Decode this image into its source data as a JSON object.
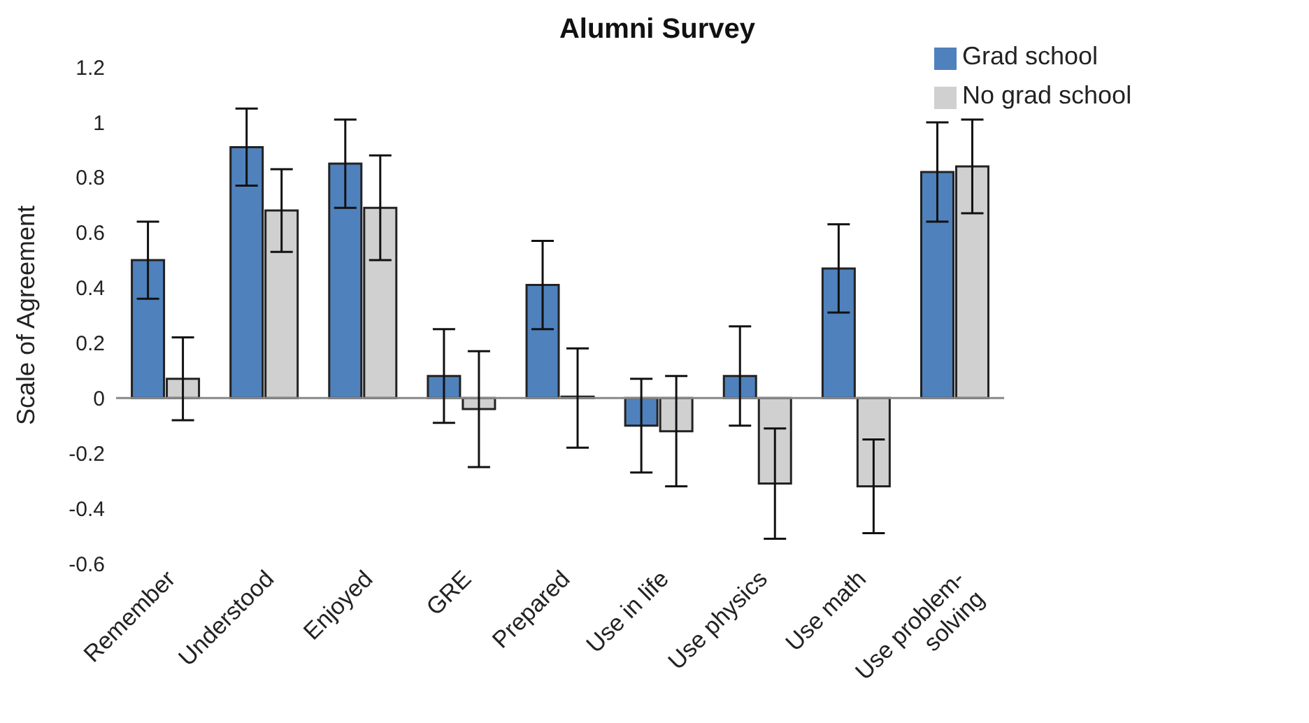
{
  "chart_data": {
    "type": "bar",
    "title": "Alumni Survey",
    "ylabel": "Scale of Agreement",
    "categories": [
      "Remember",
      "Understood",
      "Enjoyed",
      "GRE",
      "Prepared",
      "Use in life",
      "Use physics",
      "Use math",
      "Use problem-solving"
    ],
    "series": [
      {
        "name": "Grad school",
        "color": "#4f81bd",
        "values": [
          0.5,
          0.91,
          0.85,
          0.08,
          0.41,
          -0.1,
          0.08,
          0.47,
          0.82
        ],
        "errors": [
          0.14,
          0.14,
          0.16,
          0.17,
          0.16,
          0.17,
          0.18,
          0.16,
          0.18
        ]
      },
      {
        "name": "No grad school",
        "color": "#d0d0d0",
        "values": [
          0.07,
          0.68,
          0.69,
          -0.04,
          0,
          -0.12,
          -0.31,
          -0.32,
          0.84
        ],
        "errors": [
          0.15,
          0.15,
          0.19,
          0.21,
          0.18,
          0.2,
          0.2,
          0.17,
          0.17
        ]
      }
    ],
    "ylim": [
      -0.6,
      1.2
    ],
    "yticks": [
      -0.6,
      -0.4,
      -0.2,
      0,
      0.2,
      0.4,
      0.6,
      0.8,
      1,
      1.2
    ],
    "legend": "top right"
  }
}
